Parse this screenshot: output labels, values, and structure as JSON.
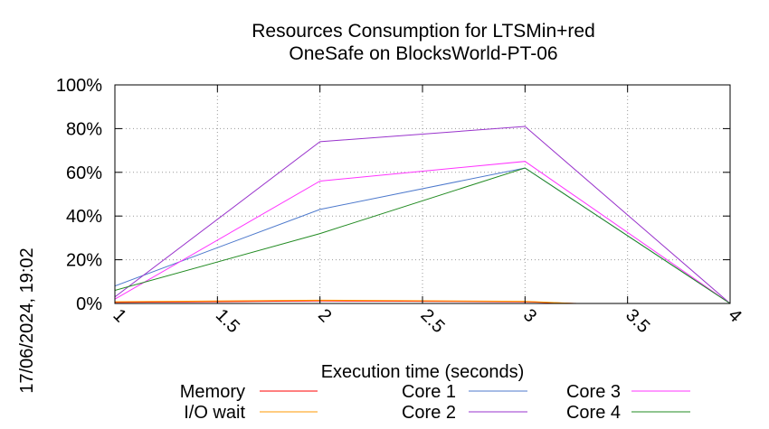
{
  "chart_data": {
    "type": "line",
    "title_line1": "Resources Consumption for LTSMin+red",
    "title_line2": "OneSafe on BlocksWorld-PT-06",
    "xlabel": "Execution time (seconds)",
    "ylabel": "",
    "timestamp": "17/06/2024, 19:02",
    "xlim": [
      1,
      4
    ],
    "ylim": [
      0,
      100
    ],
    "x_ticks": [
      1,
      1.5,
      2,
      2.5,
      3,
      3.5,
      4
    ],
    "x_tick_labels": [
      "1",
      "1.5",
      "2",
      "2.5",
      "3",
      "3.5",
      "4"
    ],
    "y_ticks": [
      0,
      20,
      40,
      60,
      80,
      100
    ],
    "y_tick_labels": [
      "0%",
      "20%",
      "40%",
      "60%",
      "80%",
      "100%"
    ],
    "grid": true,
    "series": [
      {
        "name": "Memory",
        "color": "#ff0000",
        "x": [
          1,
          2,
          3,
          3.25
        ],
        "y": [
          0.5,
          1.2,
          0.8,
          0
        ]
      },
      {
        "name": "I/O wait",
        "color": "#ff9900",
        "x": [
          1,
          2,
          3,
          3.25
        ],
        "y": [
          0.8,
          1.5,
          1.0,
          0
        ]
      },
      {
        "name": "Core 1",
        "color": "#4d79cc",
        "x": [
          1,
          2,
          3,
          4
        ],
        "y": [
          8,
          43,
          62,
          0
        ]
      },
      {
        "name": "Core 2",
        "color": "#9933cc",
        "x": [
          1,
          2,
          3,
          4
        ],
        "y": [
          3,
          74,
          81,
          0
        ]
      },
      {
        "name": "Core 3",
        "color": "#ff33ff",
        "x": [
          1,
          2,
          3,
          4
        ],
        "y": [
          2,
          56,
          65,
          0
        ]
      },
      {
        "name": "Core 4",
        "color": "#228b22",
        "x": [
          1,
          2,
          3,
          4
        ],
        "y": [
          6,
          32,
          62,
          0
        ]
      }
    ]
  }
}
